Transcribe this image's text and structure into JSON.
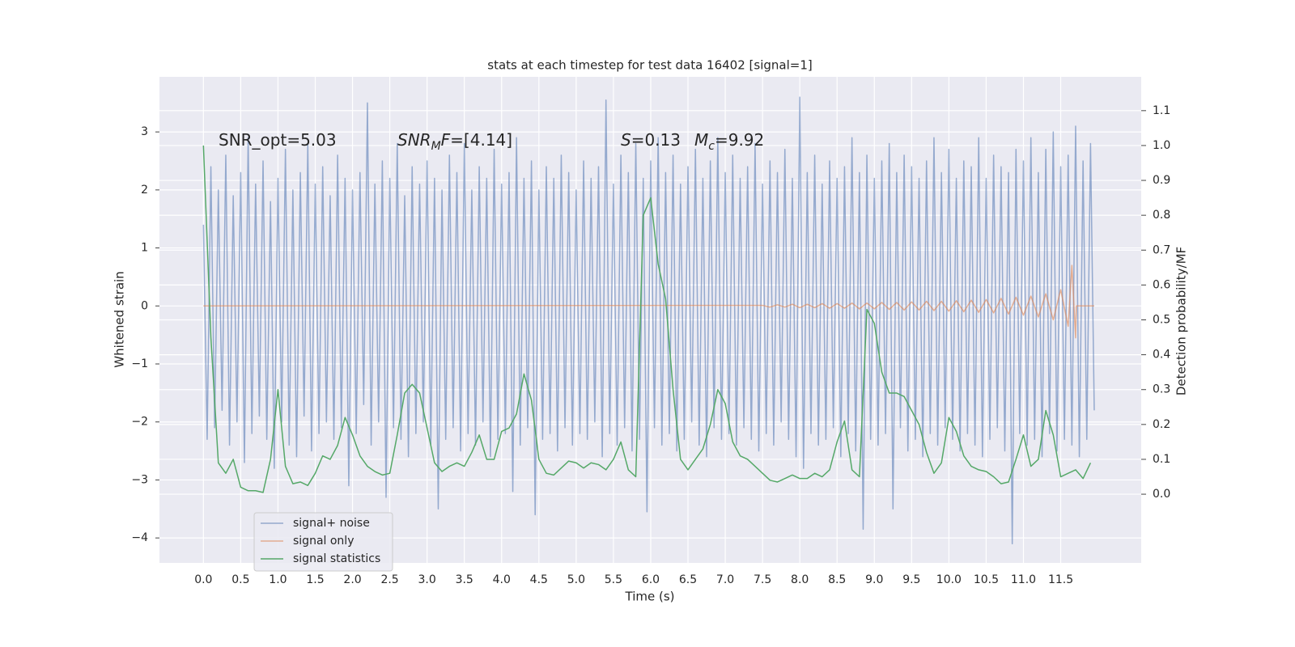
{
  "chart_data": {
    "type": "line",
    "title": "stats at each timestep for test data 16402 [signal=1]",
    "x_label": "Time (s)",
    "y_label": "Whitened strain",
    "y2_label": "Detection probability/MF",
    "xlim": [
      -0.59,
      12.58
    ],
    "ylim": [
      -4.43,
      3.95
    ],
    "y2lim": [
      -0.197,
      1.197
    ],
    "grid": true,
    "legend": "lower left",
    "xticks": [
      {
        "value": 0,
        "label": "0.0"
      },
      0.5,
      {
        "value": 1,
        "label": "1.0"
      },
      1.5,
      {
        "value": 2,
        "label": "2.0"
      },
      2.5,
      {
        "value": 3,
        "label": "3.0"
      },
      3.5,
      {
        "value": 4,
        "label": "4.0"
      },
      4.5,
      {
        "value": 5,
        "label": "5.0"
      },
      5.5,
      {
        "value": 6,
        "label": "6.0"
      },
      6.5,
      {
        "value": 7,
        "label": "7.0"
      },
      7.5,
      {
        "value": 8,
        "label": "8.0"
      },
      8.5,
      {
        "value": 9,
        "label": "9.0"
      },
      9.5,
      {
        "value": 10,
        "label": "10.0"
      },
      10.5,
      {
        "value": 11,
        "label": "11.0"
      },
      11.5
    ],
    "yticks": [
      {
        "value": -4,
        "label": "−4"
      },
      {
        "value": -3,
        "label": "−3"
      },
      {
        "value": -2,
        "label": "−2"
      },
      {
        "value": -1,
        "label": "−1"
      },
      0,
      1,
      2,
      3
    ],
    "y2ticks": [
      {
        "value": 0,
        "label": "0.0"
      },
      0.1,
      0.2,
      0.3,
      0.4,
      0.5,
      0.6,
      0.7,
      0.8,
      0.9,
      {
        "value": 1,
        "label": "1.0"
      },
      1.1
    ],
    "annotations": [
      [
        {
          "text": "SNR_opt=5.03"
        }
      ],
      [
        {
          "text": "SNR",
          "italic": true
        },
        {
          "text": "M",
          "italic": true,
          "sub": true
        },
        {
          "text": "F",
          "italic": true
        },
        {
          "text": "=[4.14]"
        }
      ],
      [
        {
          "text": "S",
          "italic": true
        },
        {
          "text": "=0.13"
        }
      ],
      [
        {
          "text": "M",
          "italic": true
        },
        {
          "text": "c",
          "italic": true,
          "sub": true
        },
        {
          "text": "=9.92"
        }
      ]
    ],
    "series": [
      {
        "name": "signal+ noise",
        "color": "#4c72b0",
        "opacity": 0.55,
        "x": [
          0,
          0.05,
          0.1,
          0.15,
          0.2,
          0.25,
          0.3,
          0.35,
          0.4,
          0.45,
          0.5,
          0.55,
          0.6,
          0.65,
          0.7,
          0.75,
          0.8,
          0.85,
          0.9,
          0.95,
          1,
          1.05,
          1.1,
          1.15,
          1.2,
          1.25,
          1.3,
          1.35,
          1.4,
          1.45,
          1.5,
          1.55,
          1.6,
          1.65,
          1.7,
          1.75,
          1.8,
          1.85,
          1.9,
          1.95,
          2,
          2.05,
          2.1,
          2.15,
          2.2,
          2.25,
          2.3,
          2.35,
          2.4,
          2.45,
          2.5,
          2.55,
          2.6,
          2.65,
          2.7,
          2.75,
          2.8,
          2.85,
          2.9,
          2.95,
          3,
          3.05,
          3.1,
          3.15,
          3.2,
          3.25,
          3.3,
          3.35,
          3.4,
          3.45,
          3.5,
          3.55,
          3.6,
          3.65,
          3.7,
          3.75,
          3.8,
          3.85,
          3.9,
          3.95,
          4,
          4.05,
          4.1,
          4.15,
          4.2,
          4.25,
          4.3,
          4.35,
          4.4,
          4.45,
          4.5,
          4.55,
          4.6,
          4.65,
          4.7,
          4.75,
          4.8,
          4.85,
          4.9,
          4.95,
          5,
          5.05,
          5.1,
          5.15,
          5.2,
          5.25,
          5.3,
          5.35,
          5.4,
          5.45,
          5.5,
          5.55,
          5.6,
          5.65,
          5.7,
          5.75,
          5.8,
          5.85,
          5.9,
          5.95,
          6,
          6.05,
          6.1,
          6.15,
          6.2,
          6.25,
          6.3,
          6.35,
          6.4,
          6.45,
          6.5,
          6.55,
          6.6,
          6.65,
          6.7,
          6.75,
          6.8,
          6.85,
          6.9,
          6.95,
          7,
          7.05,
          7.1,
          7.15,
          7.2,
          7.25,
          7.3,
          7.35,
          7.4,
          7.45,
          7.5,
          7.55,
          7.6,
          7.65,
          7.7,
          7.75,
          7.8,
          7.85,
          7.9,
          7.95,
          8,
          8.05,
          8.1,
          8.15,
          8.2,
          8.25,
          8.3,
          8.35,
          8.4,
          8.45,
          8.5,
          8.55,
          8.6,
          8.65,
          8.7,
          8.75,
          8.8,
          8.85,
          8.9,
          8.95,
          9,
          9.05,
          9.1,
          9.15,
          9.2,
          9.25,
          9.3,
          9.35,
          9.4,
          9.45,
          9.5,
          9.55,
          9.6,
          9.65,
          9.7,
          9.75,
          9.8,
          9.85,
          9.9,
          9.95,
          10,
          10.05,
          10.1,
          10.15,
          10.2,
          10.25,
          10.3,
          10.35,
          10.4,
          10.45,
          10.5,
          10.55,
          10.6,
          10.65,
          10.7,
          10.75,
          10.8,
          10.85,
          10.9,
          10.95,
          11,
          11.05,
          11.1,
          11.15,
          11.2,
          11.25,
          11.3,
          11.35,
          11.4,
          11.45,
          11.5,
          11.55,
          11.6,
          11.65,
          11.7,
          11.75,
          11.8,
          11.85,
          11.9,
          11.95
        ],
        "values": [
          1.4,
          -2.3,
          2.4,
          -2.1,
          2.0,
          -1.8,
          2.6,
          -2.4,
          1.9,
          -2.0,
          2.3,
          -2.7,
          2.9,
          -2.2,
          2.1,
          -1.9,
          2.5,
          -2.3,
          1.8,
          -2.8,
          2.2,
          -2.0,
          2.7,
          -2.4,
          2.0,
          -2.6,
          2.3,
          -1.9,
          2.8,
          -2.5,
          2.1,
          -2.2,
          2.4,
          -2.0,
          1.9,
          -2.3,
          2.6,
          -2.1,
          2.2,
          -3.1,
          2.0,
          -2.2,
          2.3,
          -1.7,
          3.5,
          -2.4,
          2.1,
          -2.0,
          2.5,
          -3.3,
          2.2,
          -2.1,
          2.8,
          -2.3,
          1.9,
          -2.6,
          2.4,
          -2.2,
          2.1,
          -2.0,
          2.5,
          -2.4,
          2.2,
          -3.5,
          2.0,
          -2.3,
          2.6,
          -2.1,
          2.3,
          -2.5,
          2.8,
          -2.2,
          2.0,
          -2.4,
          2.4,
          -2.0,
          2.2,
          -2.6,
          2.7,
          -2.3,
          2.1,
          -2.2,
          2.3,
          -3.2,
          2.9,
          -2.4,
          2.2,
          -2.1,
          2.5,
          -3.6,
          2.0,
          -2.3,
          2.4,
          -2.2,
          2.2,
          -2.5,
          2.6,
          -2.1,
          2.3,
          -2.4,
          2.0,
          -2.2,
          2.5,
          -2.3,
          2.2,
          -2.0,
          2.4,
          -2.6,
          3.55,
          -2.2,
          2.1,
          -2.4,
          2.6,
          -2.1,
          2.3,
          -2.5,
          2.8,
          -2.3,
          2.2,
          -3.55,
          2.5,
          -2.1,
          2.9,
          -2.4,
          2.3,
          -2.2,
          2.6,
          -2.5,
          2.1,
          -2.3,
          2.4,
          -2.0,
          2.7,
          -2.4,
          2.2,
          -2.6,
          2.5,
          -2.1,
          2.9,
          -2.3,
          2.3,
          -2.2,
          2.6,
          -2.4,
          2.2,
          -2.1,
          2.4,
          -2.3,
          2.8,
          -2.5,
          2.1,
          -2.2,
          2.5,
          -2.4,
          2.3,
          -2.0,
          2.7,
          -2.3,
          2.2,
          -2.6,
          3.6,
          -2.8,
          2.3,
          -2.2,
          2.6,
          -2.4,
          2.1,
          -2.3,
          2.5,
          -2.1,
          2.2,
          -2.6,
          2.4,
          -2.2,
          2.9,
          -2.5,
          2.3,
          -3.85,
          2.6,
          -2.3,
          2.2,
          -2.4,
          2.5,
          -2.2,
          2.8,
          -3.5,
          2.3,
          -2.1,
          2.6,
          -2.5,
          2.4,
          -2.3,
          2.2,
          -2.6,
          2.5,
          -2.2,
          2.9,
          -2.4,
          2.3,
          -2.1,
          2.7,
          -2.3,
          2.2,
          -2.5,
          2.5,
          -2.2,
          2.4,
          -2.4,
          2.9,
          -2.6,
          2.2,
          -2.3,
          2.6,
          -2.1,
          2.4,
          -2.5,
          2.3,
          -4.1,
          2.7,
          -2.2,
          2.5,
          -2.4,
          2.9,
          -2.3,
          2.3,
          -2.6,
          2.7,
          -2.2,
          3.0,
          -2.5,
          2.4,
          -2.3,
          2.6,
          -2.4,
          3.1,
          -2.6,
          2.5,
          -2.3,
          2.8,
          -1.8
        ]
      },
      {
        "name": "signal only",
        "color": "#dd8452",
        "opacity": 0.6,
        "x": [
          0,
          7.5,
          7.6,
          7.7,
          7.8,
          7.9,
          8.0,
          8.1,
          8.2,
          8.3,
          8.4,
          8.5,
          8.6,
          8.7,
          8.8,
          8.9,
          9.0,
          9.1,
          9.2,
          9.3,
          9.4,
          9.5,
          9.6,
          9.7,
          9.8,
          9.9,
          10.0,
          10.1,
          10.2,
          10.3,
          10.4,
          10.5,
          10.6,
          10.7,
          10.8,
          10.9,
          11.0,
          11.1,
          11.2,
          11.3,
          11.4,
          11.5,
          11.6,
          11.65,
          11.7,
          11.71,
          11.95
        ],
        "values": [
          0,
          0.01,
          -0.02,
          0.02,
          -0.02,
          0.03,
          -0.03,
          0.03,
          -0.03,
          0.04,
          -0.04,
          0.04,
          -0.04,
          0.05,
          -0.05,
          0.05,
          -0.05,
          0.06,
          -0.06,
          0.06,
          -0.07,
          0.07,
          -0.07,
          0.08,
          -0.08,
          0.08,
          -0.09,
          0.09,
          -0.1,
          0.1,
          -0.11,
          0.11,
          -0.12,
          0.13,
          -0.14,
          0.15,
          -0.16,
          0.17,
          -0.19,
          0.21,
          -0.24,
          0.28,
          -0.35,
          0.7,
          -0.55,
          0,
          0
        ]
      },
      {
        "name": "signal statistics",
        "color": "#55a868",
        "opacity": 1,
        "axis": "y2",
        "x": [
          0,
          0.1,
          0.2,
          0.3,
          0.4,
          0.5,
          0.6,
          0.7,
          0.8,
          0.9,
          1,
          1.1,
          1.2,
          1.3,
          1.4,
          1.5,
          1.6,
          1.7,
          1.8,
          1.9,
          2,
          2.1,
          2.2,
          2.3,
          2.4,
          2.5,
          2.6,
          2.7,
          2.8,
          2.9,
          3,
          3.1,
          3.2,
          3.3,
          3.4,
          3.5,
          3.6,
          3.7,
          3.8,
          3.9,
          4,
          4.1,
          4.2,
          4.3,
          4.4,
          4.5,
          4.6,
          4.7,
          4.8,
          4.9,
          5,
          5.1,
          5.2,
          5.3,
          5.4,
          5.5,
          5.6,
          5.7,
          5.8,
          5.9,
          6,
          6.1,
          6.2,
          6.3,
          6.4,
          6.5,
          6.6,
          6.7,
          6.8,
          6.9,
          7,
          7.1,
          7.2,
          7.3,
          7.4,
          7.5,
          7.6,
          7.7,
          7.8,
          7.9,
          8,
          8.1,
          8.2,
          8.3,
          8.4,
          8.5,
          8.6,
          8.7,
          8.8,
          8.9,
          9,
          9.1,
          9.2,
          9.3,
          9.4,
          9.5,
          9.6,
          9.7,
          9.8,
          9.9,
          10,
          10.1,
          10.2,
          10.3,
          10.4,
          10.5,
          10.6,
          10.7,
          10.8,
          10.9,
          11,
          11.1,
          11.2,
          11.3,
          11.4,
          11.5,
          11.6,
          11.7,
          11.8,
          11.9
        ],
        "values": [
          1.0,
          0.45,
          0.09,
          0.06,
          0.1,
          0.02,
          0.01,
          0.01,
          0.005,
          0.1,
          0.3,
          0.08,
          0.03,
          0.035,
          0.025,
          0.06,
          0.11,
          0.1,
          0.14,
          0.22,
          0.17,
          0.11,
          0.08,
          0.065,
          0.055,
          0.06,
          0.17,
          0.29,
          0.315,
          0.29,
          0.19,
          0.09,
          0.065,
          0.08,
          0.09,
          0.08,
          0.12,
          0.17,
          0.1,
          0.1,
          0.18,
          0.19,
          0.23,
          0.345,
          0.27,
          0.1,
          0.06,
          0.055,
          0.075,
          0.095,
          0.09,
          0.075,
          0.09,
          0.085,
          0.07,
          0.1,
          0.15,
          0.07,
          0.05,
          0.8,
          0.85,
          0.66,
          0.56,
          0.3,
          0.1,
          0.07,
          0.1,
          0.13,
          0.2,
          0.3,
          0.26,
          0.15,
          0.11,
          0.1,
          0.08,
          0.06,
          0.04,
          0.035,
          0.045,
          0.055,
          0.045,
          0.045,
          0.06,
          0.05,
          0.07,
          0.15,
          0.21,
          0.07,
          0.05,
          0.53,
          0.49,
          0.35,
          0.29,
          0.29,
          0.28,
          0.24,
          0.2,
          0.12,
          0.06,
          0.09,
          0.22,
          0.18,
          0.11,
          0.08,
          0.07,
          0.065,
          0.05,
          0.03,
          0.035,
          0.1,
          0.17,
          0.08,
          0.1,
          0.24,
          0.17,
          0.05,
          0.06,
          0.07,
          0.045,
          0.09
        ]
      }
    ]
  }
}
